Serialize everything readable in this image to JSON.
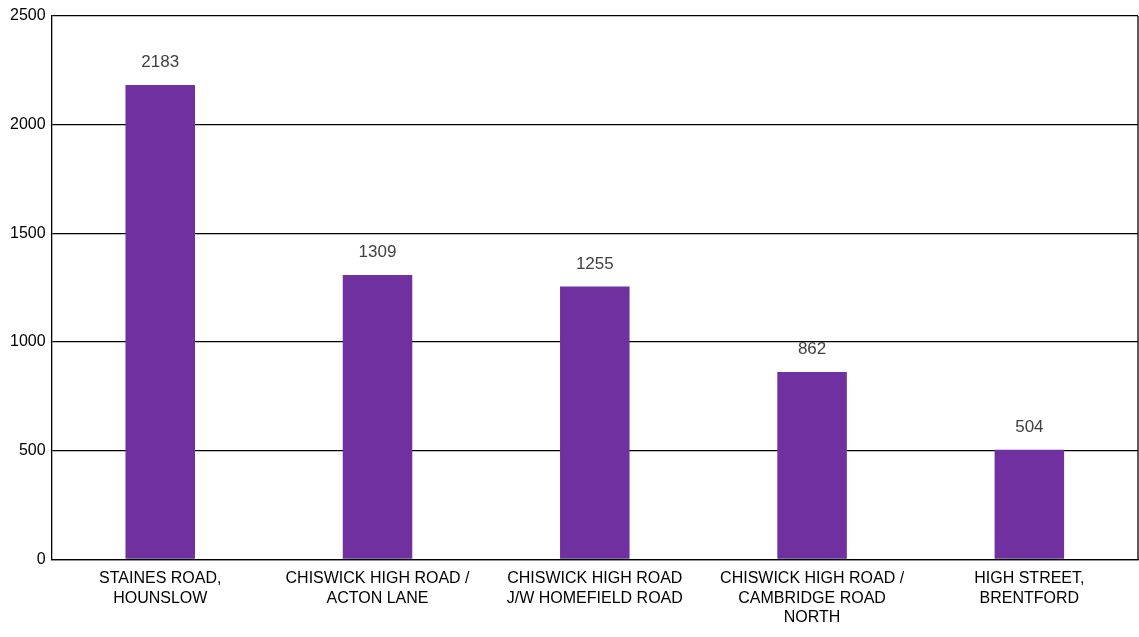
{
  "chart_data": {
    "type": "bar",
    "categories": [
      "STAINES ROAD, HOUNSLOW",
      "CHISWICK HIGH ROAD / ACTON LANE",
      "CHISWICK HIGH ROAD J/W HOMEFIELD ROAD",
      "CHISWICK HIGH ROAD / CAMBRIDGE ROAD NORTH",
      "HIGH STREET, BRENTFORD"
    ],
    "values": [
      2183,
      1309,
      1255,
      862,
      504
    ],
    "color": "#7030a0",
    "ylim": [
      0,
      2500
    ],
    "yticks": [
      0,
      500,
      1000,
      1500,
      2000,
      2500
    ],
    "grid": "y",
    "data_labels": true
  }
}
